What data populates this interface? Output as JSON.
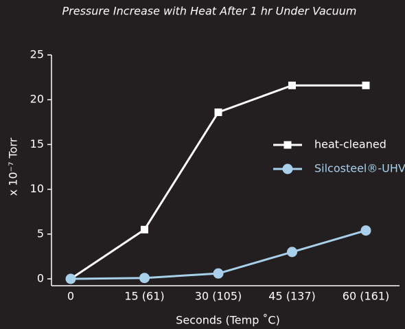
{
  "chart_data": {
    "type": "line",
    "title": "Pressure Increase with Heat After 1 hr Under Vacuum",
    "x_label": "Seconds  (Temp ˚C)",
    "y_label": "x 10⁻⁷ Torr",
    "categories": [
      "0",
      "15 (61)",
      "30 (105)",
      "45 (137)",
      "60 (161)"
    ],
    "series": [
      {
        "name": "heat-cleaned",
        "color": "#ffffff",
        "marker": "square",
        "values": [
          0,
          5.5,
          18.6,
          21.6,
          21.6
        ]
      },
      {
        "name": "Silcosteel®-UHV",
        "color": "#a9d0ea",
        "marker": "circle",
        "values": [
          0,
          0.1,
          0.6,
          3.0,
          5.4
        ]
      }
    ],
    "ylim": [
      0,
      25
    ],
    "yticks": [
      0,
      5,
      10,
      15,
      20,
      25
    ],
    "grid": false,
    "legend": "right"
  }
}
